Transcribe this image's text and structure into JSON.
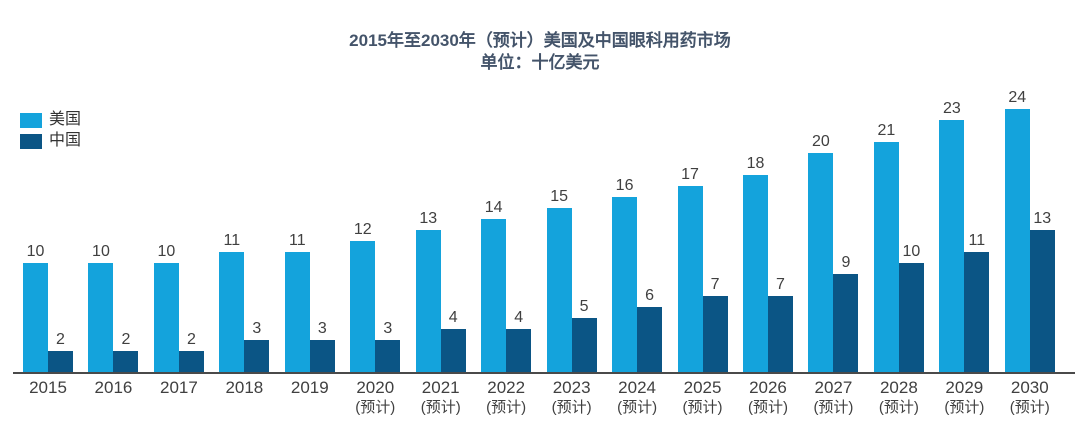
{
  "title": {
    "line1": "2015年至2030年（预计）美国及中国眼科用药市场",
    "line2": "单位：十亿美元"
  },
  "legend": [
    {
      "label": "美国",
      "color": "#14A3DC"
    },
    {
      "label": "中国",
      "color": "#0B5585"
    }
  ],
  "chart_data": {
    "type": "bar",
    "title": "2015年至2030年（预计）美国及中国眼科用药市场",
    "subtitle": "单位：十亿美元",
    "unit": "十亿美元",
    "categories": [
      "2015",
      "2016",
      "2017",
      "2018",
      "2019",
      "2020",
      "2021",
      "2022",
      "2023",
      "2024",
      "2025",
      "2026",
      "2027",
      "2028",
      "2029",
      "2030"
    ],
    "category_notes": [
      "",
      "",
      "",
      "",
      "",
      "(预计)",
      "(预计)",
      "(预计)",
      "(预计)",
      "(预计)",
      "(预计)",
      "(预计)",
      "(预计)",
      "(预计)",
      "(预计)",
      "(预计)"
    ],
    "series": [
      {
        "name": "美国",
        "color": "#14A3DC",
        "values": [
          10,
          10,
          10,
          11,
          11,
          12,
          13,
          14,
          15,
          16,
          17,
          18,
          20,
          21,
          23,
          24
        ]
      },
      {
        "name": "中国",
        "color": "#0B5585",
        "values": [
          2,
          2,
          2,
          3,
          3,
          3,
          4,
          4,
          5,
          6,
          7,
          7,
          9,
          10,
          11,
          13
        ]
      }
    ],
    "ylim": [
      0,
      26
    ],
    "grid": false,
    "legend_position": "top-left",
    "value_labels": true
  },
  "colors": {
    "title": "#44546A",
    "label": "#404040",
    "axis": "#4a4a4a",
    "background": "#FFFFFF"
  }
}
